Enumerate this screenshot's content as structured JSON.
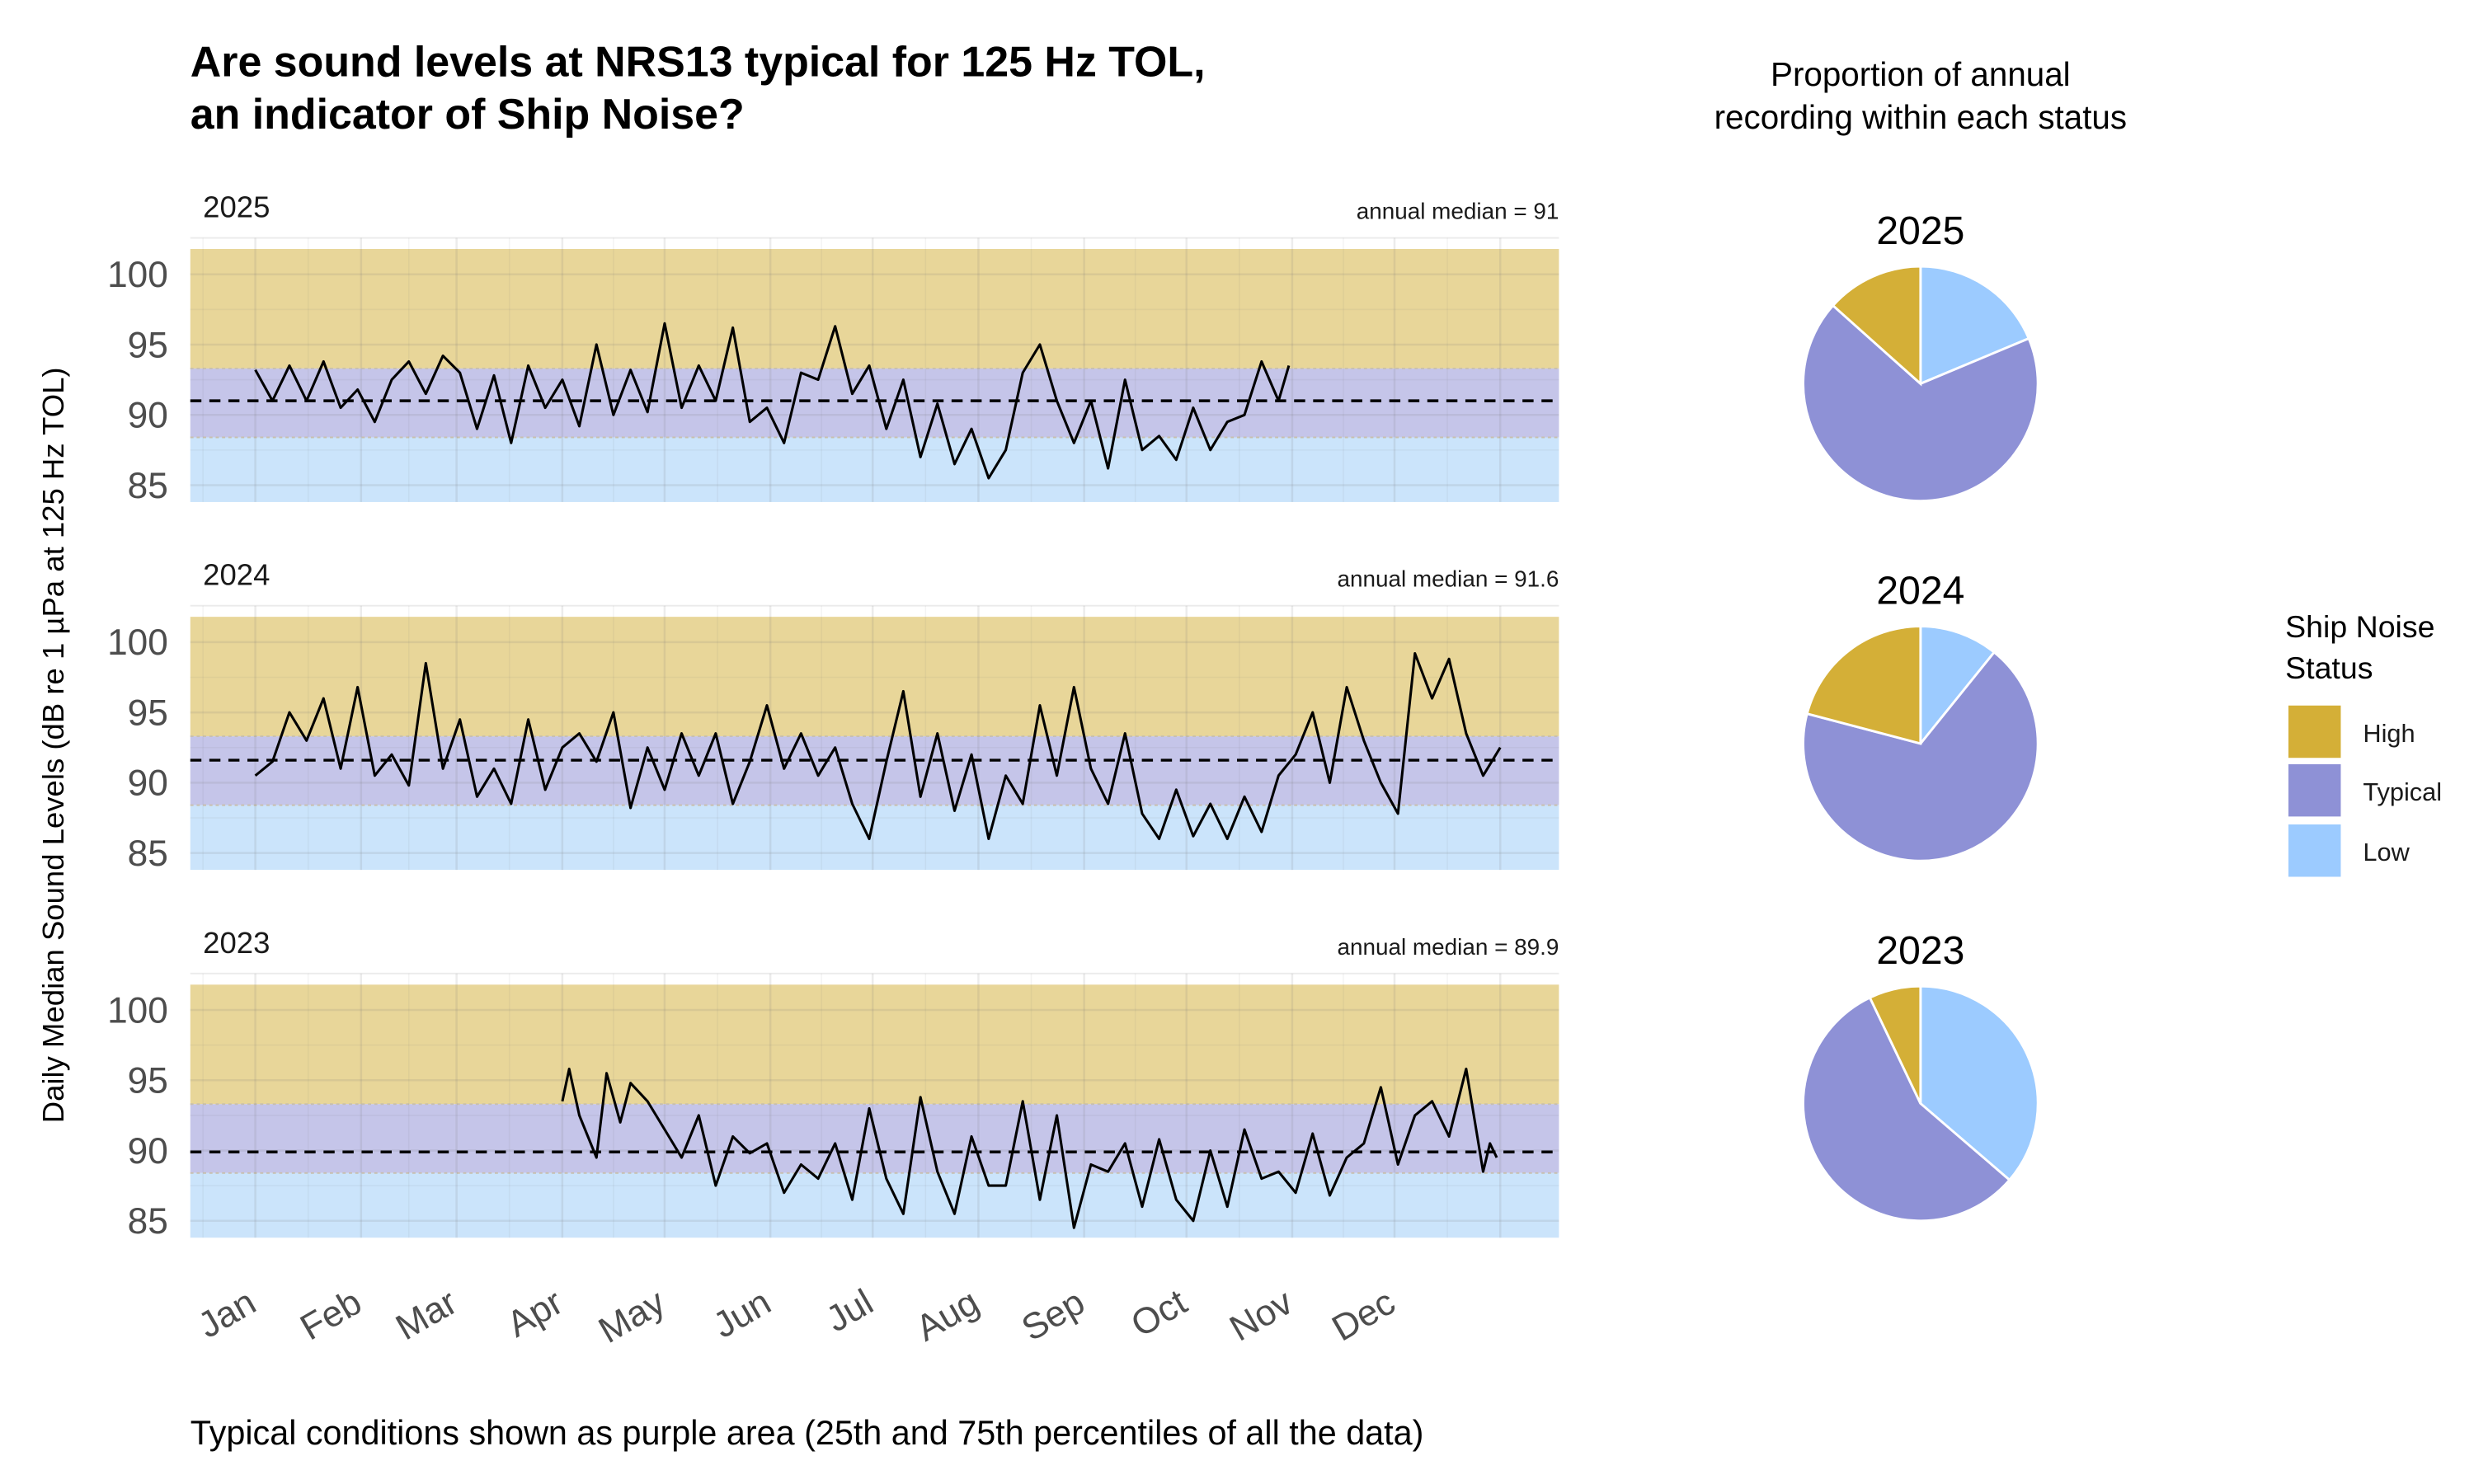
{
  "title_lines": [
    "Are sound levels at NRS13 typical for 125 Hz TOL,",
    "an indicator of Ship Noise?"
  ],
  "caption": "Typical conditions shown as purple area (25th and 75th percentiles of all the data)",
  "colors": {
    "High": "#D4AF37",
    "Typical": "#8E91D6",
    "Low": "#9CCBFF",
    "line": "#000000"
  },
  "chart_data": [
    {
      "type": "line",
      "ylabel": "Daily Median Sound Levels (dB re 1 µPa at 125 Hz TOL)",
      "ylim": [
        83.8,
        101.8
      ],
      "yticks": [
        85,
        90,
        95,
        100
      ],
      "xticks": [
        "Jan",
        "Feb",
        "Mar",
        "Apr",
        "May",
        "Jun",
        "Jul",
        "Aug",
        "Sep",
        "Oct",
        "Nov",
        "Dec"
      ],
      "xtick_days": [
        1,
        32,
        60,
        91,
        121,
        152,
        182,
        213,
        244,
        274,
        305,
        335
      ],
      "x_unit": "day of year",
      "grid": true,
      "bands": {
        "High": [
          93.3,
          101.8
        ],
        "Typical": [
          88.4,
          93.3
        ],
        "Low": [
          83.8,
          88.4
        ]
      },
      "panels": [
        {
          "year": "2025",
          "median_label": "annual median = 91",
          "median": 91,
          "x": [
            1,
            6,
            11,
            16,
            21,
            26,
            31,
            36,
            41,
            46,
            51,
            56,
            61,
            66,
            71,
            76,
            81,
            86,
            91,
            96,
            101,
            106,
            111,
            116,
            121,
            126,
            131,
            136,
            141,
            146,
            151,
            156,
            161,
            166,
            171,
            176,
            181,
            186,
            191,
            196,
            201,
            206,
            211,
            216,
            221,
            226,
            231,
            236,
            241,
            246,
            251,
            256,
            261,
            266,
            271,
            276,
            281,
            286,
            291,
            296,
            301,
            304
          ],
          "y": [
            93.2,
            91,
            93.5,
            91,
            93.8,
            90.5,
            91.8,
            89.5,
            92.5,
            93.8,
            91.5,
            94.2,
            93,
            89,
            92.8,
            88,
            93.5,
            90.5,
            92.5,
            89.2,
            95,
            90,
            93.2,
            90.2,
            96.5,
            90.5,
            93.5,
            91,
            96.2,
            89.5,
            90.5,
            88,
            93,
            92.5,
            96.3,
            91.5,
            93.5,
            89,
            92.5,
            87,
            90.8,
            86.5,
            89,
            85.5,
            87.5,
            93,
            95,
            91,
            88,
            91,
            86.2,
            92.5,
            87.5,
            88.5,
            86.8,
            90.5,
            87.5,
            89.5,
            90,
            93.8,
            91,
            93.5
          ]
        },
        {
          "year": "2024",
          "median_label": "annual median = 91.6",
          "median": 91.6,
          "x": [
            1,
            6,
            11,
            16,
            21,
            26,
            31,
            36,
            41,
            46,
            51,
            56,
            61,
            66,
            71,
            76,
            81,
            86,
            91,
            96,
            101,
            106,
            111,
            116,
            121,
            126,
            131,
            136,
            141,
            146,
            151,
            156,
            161,
            166,
            171,
            176,
            181,
            186,
            191,
            196,
            201,
            206,
            211,
            216,
            221,
            226,
            231,
            236,
            241,
            246,
            251,
            256,
            261,
            266,
            271,
            276,
            281,
            286,
            291,
            296,
            301,
            306,
            311,
            316,
            321,
            326,
            331,
            336,
            341,
            346,
            351,
            356,
            361,
            366
          ],
          "y": [
            90.5,
            91.5,
            95,
            93,
            96,
            91,
            96.8,
            90.5,
            92,
            89.8,
            98.5,
            91,
            94.5,
            89,
            91,
            88.5,
            94.5,
            89.5,
            92.5,
            93.5,
            91.5,
            95,
            88.2,
            92.5,
            89.5,
            93.5,
            90.5,
            93.5,
            88.5,
            91.5,
            95.5,
            91,
            93.5,
            90.5,
            92.5,
            88.5,
            86,
            91.5,
            96.5,
            89,
            93.5,
            88,
            92,
            86,
            90.5,
            88.5,
            95.5,
            90.5,
            96.8,
            91,
            88.5,
            93.5,
            87.8,
            86,
            89.5,
            86.2,
            88.5,
            86,
            89,
            86.5,
            90.5,
            92,
            95,
            90,
            96.8,
            93,
            90,
            87.8,
            99.2,
            96,
            98.8,
            93.5,
            90.5,
            92.5
          ]
        },
        {
          "year": "2023",
          "median_label": "annual median = 89.9",
          "median": 89.9,
          "x": [
            91,
            93,
            96,
            101,
            104,
            108,
            111,
            116,
            121,
            126,
            131,
            136,
            141,
            146,
            151,
            156,
            161,
            166,
            171,
            176,
            181,
            186,
            191,
            196,
            201,
            206,
            211,
            216,
            221,
            226,
            231,
            236,
            241,
            246,
            251,
            256,
            261,
            266,
            271,
            276,
            281,
            286,
            291,
            296,
            301,
            306,
            311,
            316,
            321,
            326,
            331,
            336,
            341,
            346,
            351,
            356,
            361,
            363,
            365
          ],
          "y": [
            93.5,
            95.8,
            92.5,
            89.5,
            95.5,
            92,
            94.8,
            93.5,
            91.5,
            89.5,
            92.5,
            87.5,
            91,
            89.8,
            90.5,
            87,
            89,
            88,
            90.5,
            86.5,
            93,
            88,
            85.5,
            93.8,
            88.5,
            85.5,
            91,
            87.5,
            87.5,
            93.5,
            86.5,
            92.5,
            84.5,
            89,
            88.5,
            90.5,
            86,
            90.8,
            86.5,
            85,
            90,
            86,
            91.5,
            88,
            88.5,
            87,
            91.2,
            86.8,
            89.5,
            90.5,
            94.5,
            89,
            92.5,
            93.5,
            91,
            95.8,
            88.5,
            90.5,
            89.5
          ]
        }
      ]
    },
    {
      "type": "pie",
      "title_lines": [
        "Proportion of annual",
        "recording within each status"
      ],
      "legend": {
        "title_lines": [
          "Ship Noise",
          "Status"
        ],
        "entries": [
          "High",
          "Typical",
          "Low"
        ],
        "placement": "right"
      },
      "pies": [
        {
          "year": "2025",
          "values": {
            "Low": 18.7,
            "Typical": 67.9,
            "High": 13.4
          }
        },
        {
          "year": "2024",
          "values": {
            "Low": 10.8,
            "Typical": 68.3,
            "High": 20.9
          }
        },
        {
          "year": "2023",
          "values": {
            "Low": 36.3,
            "Typical": 56.6,
            "High": 7.1
          }
        }
      ]
    }
  ]
}
